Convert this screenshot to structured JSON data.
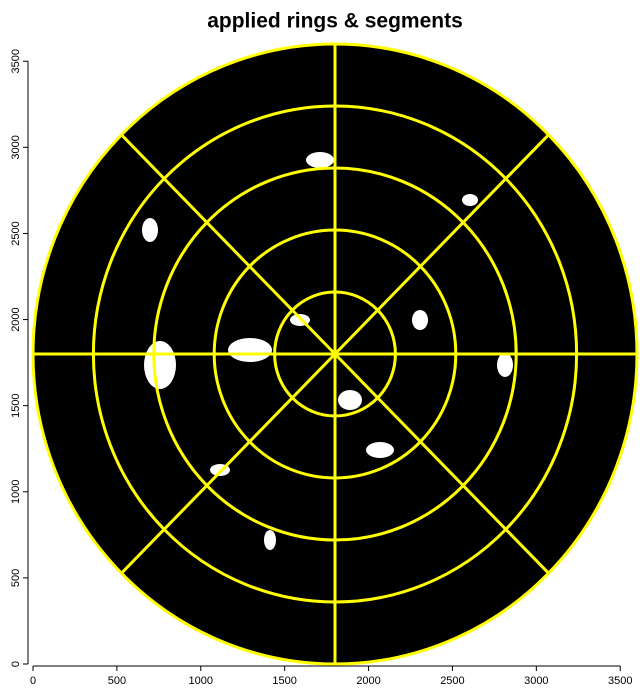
{
  "chart_data": {
    "type": "image",
    "title": "applied rings & segments",
    "xlim": [
      0,
      3600
    ],
    "ylim": [
      0,
      3600
    ],
    "xticks": [
      0,
      500,
      1000,
      1500,
      2000,
      2500,
      3000,
      3500
    ],
    "yticks": [
      0,
      500,
      1000,
      1500,
      2000,
      2500,
      3000,
      3500
    ],
    "center": [
      1800,
      1800
    ],
    "rings": [
      360,
      720,
      1080,
      1440,
      1800
    ],
    "segment_angles": [
      0,
      45,
      90,
      135,
      180,
      225,
      270,
      315
    ],
    "ring_color": "#ffff00",
    "disk_color": "#000000"
  }
}
